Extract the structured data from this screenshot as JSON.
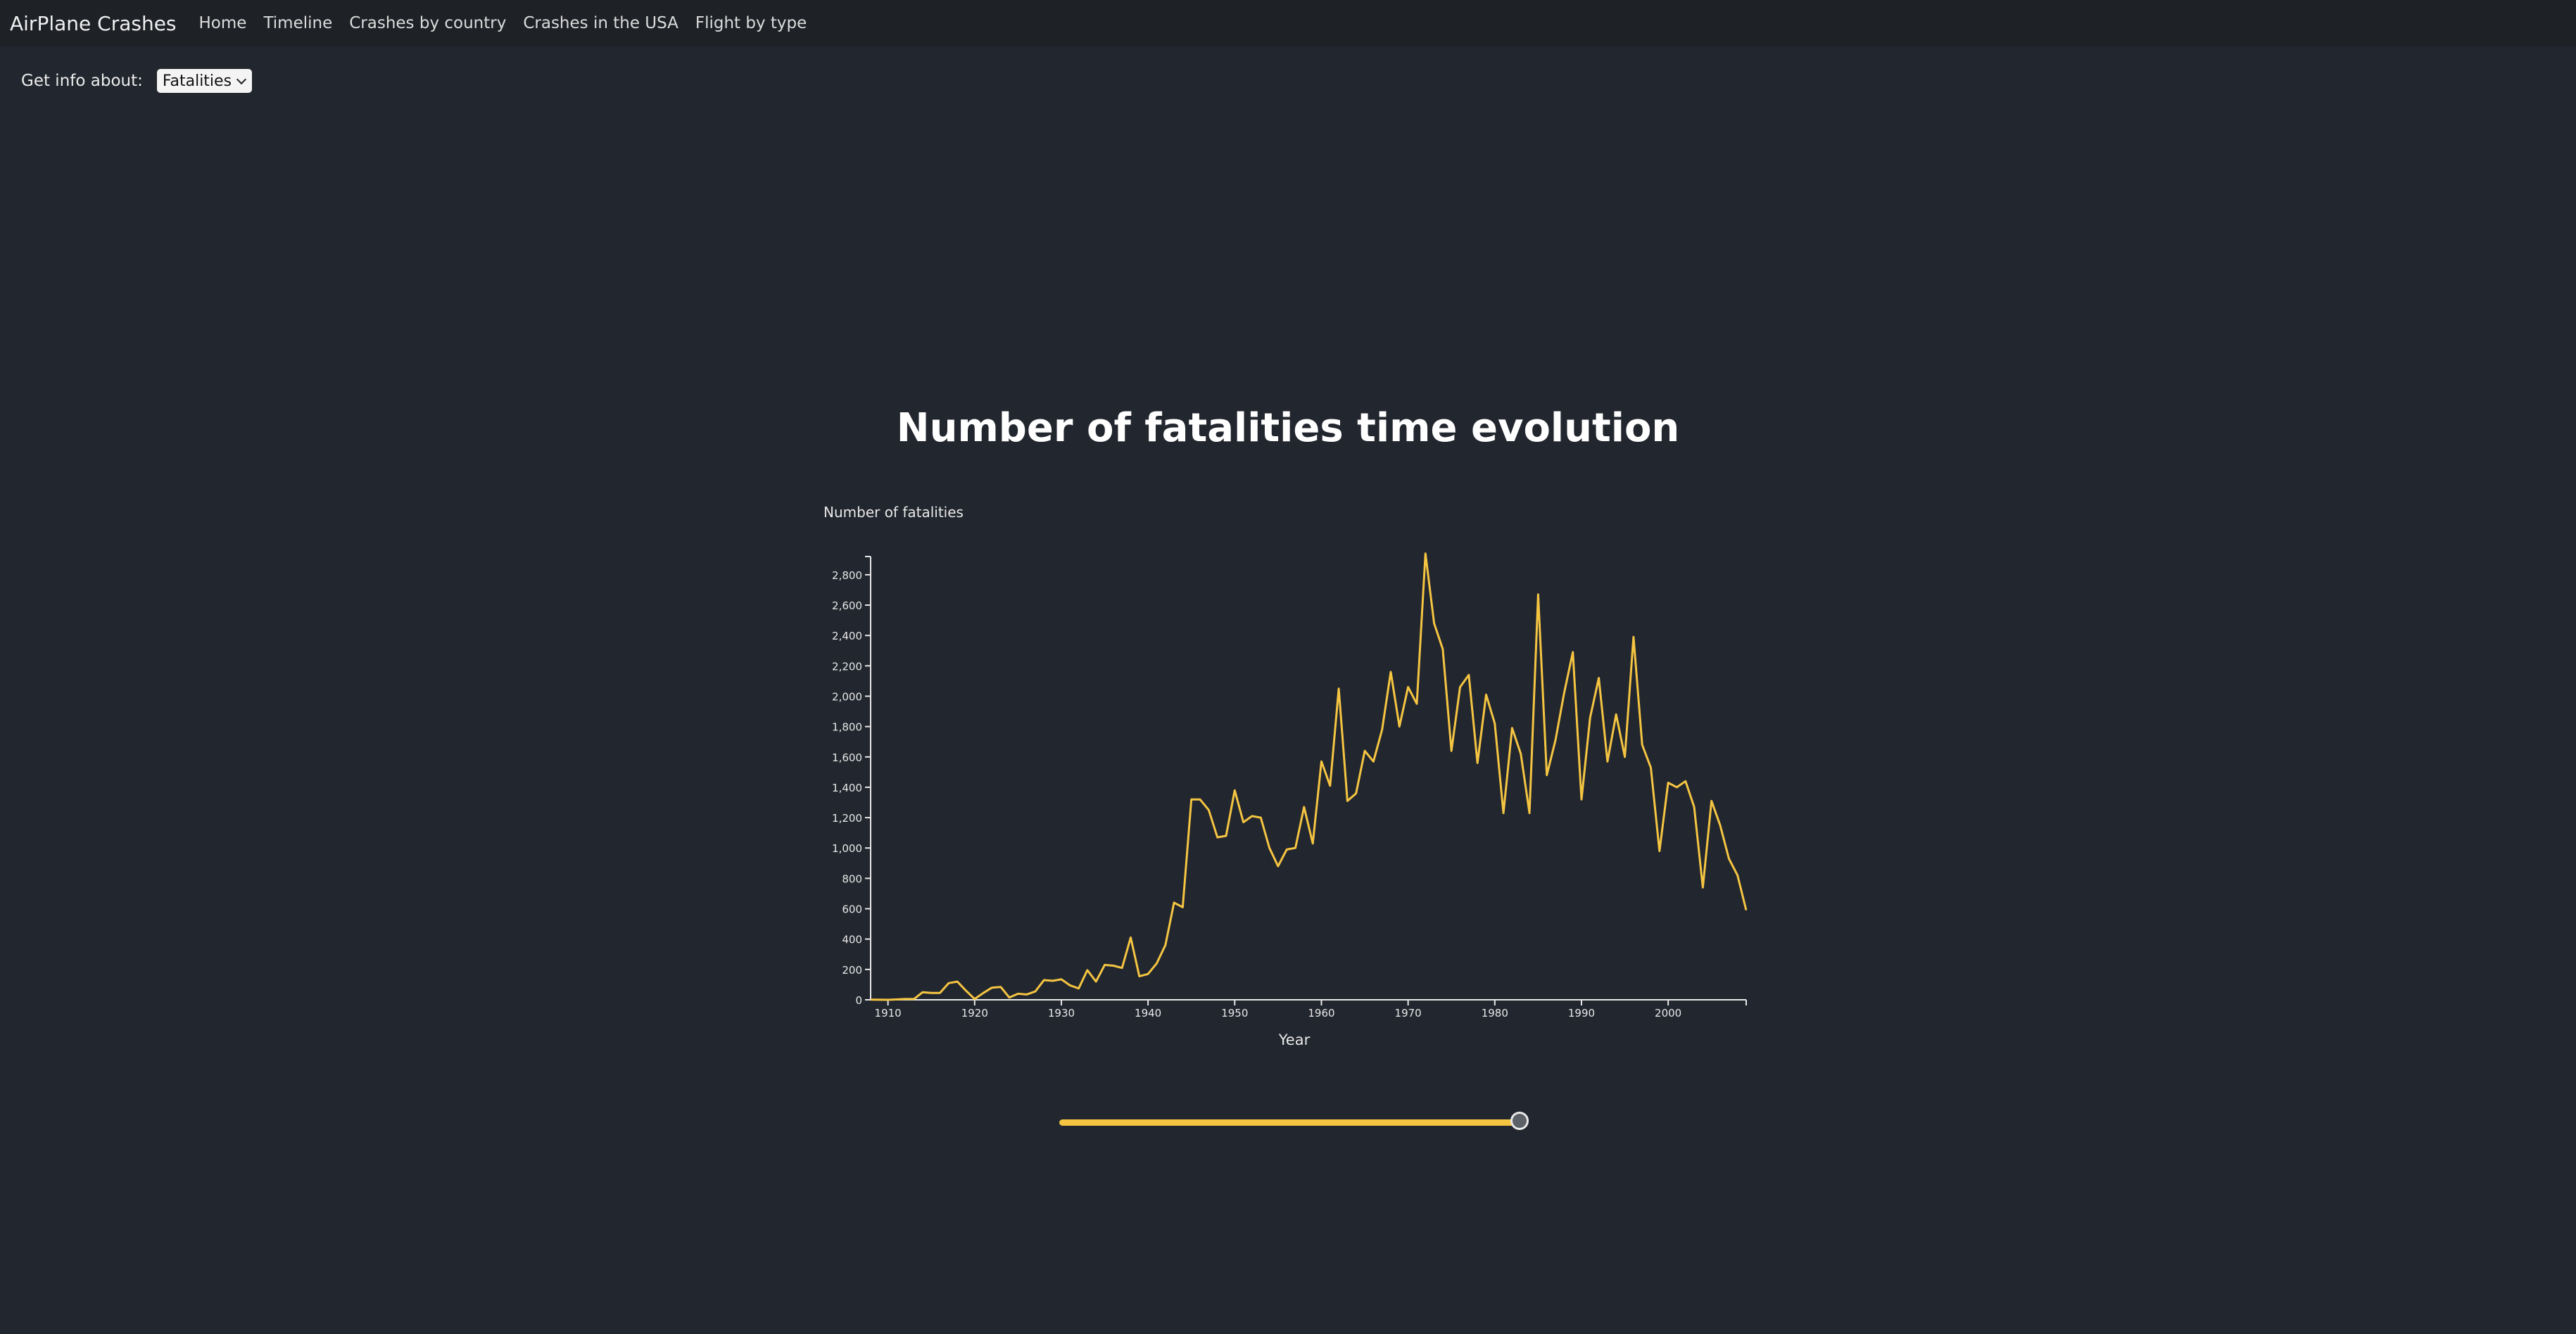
{
  "navbar": {
    "brand": "AirPlane Crashes",
    "links": [
      "Home",
      "Timeline",
      "Crashes by country",
      "Crashes in the USA",
      "Flight by type"
    ]
  },
  "controls": {
    "label": "Get info about:",
    "selected_option": "Fatalities"
  },
  "page_title": "Number of fatalities time evolution",
  "slider": {
    "value_fraction": 1.0
  },
  "colors": {
    "line": "#f5c542",
    "background": "#22262e",
    "navbar": "#1e2126"
  },
  "chart_data": {
    "type": "line",
    "title": "Number of fatalities time evolution",
    "xlabel": "Year",
    "ylabel": "Number of fatalities",
    "xlim": [
      1908,
      2009
    ],
    "ylim": [
      0,
      2920
    ],
    "x_ticks": [
      1910,
      1920,
      1930,
      1940,
      1950,
      1960,
      1970,
      1980,
      1990,
      2000
    ],
    "y_ticks": [
      0,
      200,
      400,
      600,
      800,
      1000,
      1200,
      1400,
      1600,
      1800,
      2000,
      2200,
      2400,
      2600,
      2800
    ],
    "grid": false,
    "series": [
      {
        "x": [
          1908,
          1910,
          1912,
          1913,
          1914,
          1915,
          1916,
          1917,
          1918,
          1919,
          1920,
          1921,
          1922,
          1923,
          1924,
          1925,
          1926,
          1927,
          1928,
          1929,
          1930,
          1931,
          1932,
          1933,
          1934,
          1935,
          1936,
          1937,
          1938,
          1939,
          1940,
          1941,
          1942,
          1943,
          1944,
          1945,
          1946,
          1947,
          1948,
          1949,
          1950,
          1951,
          1952,
          1953,
          1954,
          1955,
          1956,
          1957,
          1958,
          1959,
          1960,
          1961,
          1962,
          1963,
          1964,
          1965,
          1966,
          1967,
          1968,
          1969,
          1970,
          1971,
          1972,
          1973,
          1974,
          1975,
          1976,
          1977,
          1978,
          1979,
          1980,
          1981,
          1982,
          1983,
          1984,
          1985,
          1986,
          1987,
          1988,
          1989,
          1990,
          1991,
          1992,
          1993,
          1994,
          1995,
          1996,
          1997,
          1998,
          1999,
          2000,
          2001,
          2002,
          2003,
          2004,
          2005,
          2006,
          2007,
          2008,
          2009
        ],
        "y": [
          1,
          0,
          5,
          5,
          50,
          45,
          45,
          110,
          120,
          60,
          5,
          45,
          80,
          85,
          15,
          40,
          35,
          55,
          130,
          125,
          135,
          95,
          75,
          195,
          120,
          230,
          225,
          210,
          410,
          155,
          170,
          240,
          360,
          640,
          610,
          1320,
          1320,
          1250,
          1070,
          1080,
          1380,
          1170,
          1210,
          1200,
          1000,
          880,
          990,
          1000,
          1270,
          1030,
          1570,
          1410,
          2050,
          1310,
          1360,
          1640,
          1570,
          1780,
          2160,
          1800,
          2060,
          1950,
          2940,
          2480,
          2310,
          1640,
          2060,
          2140,
          1560,
          2010,
          1820,
          1230,
          1790,
          1620,
          1230,
          2670,
          1480,
          1710,
          2020,
          2290,
          1320,
          1860,
          2120,
          1570,
          1880,
          1600,
          2390,
          1680,
          1530,
          980,
          1430,
          1400,
          1440,
          1270,
          740,
          1310,
          1150,
          930,
          820,
          590
        ]
      }
    ]
  }
}
